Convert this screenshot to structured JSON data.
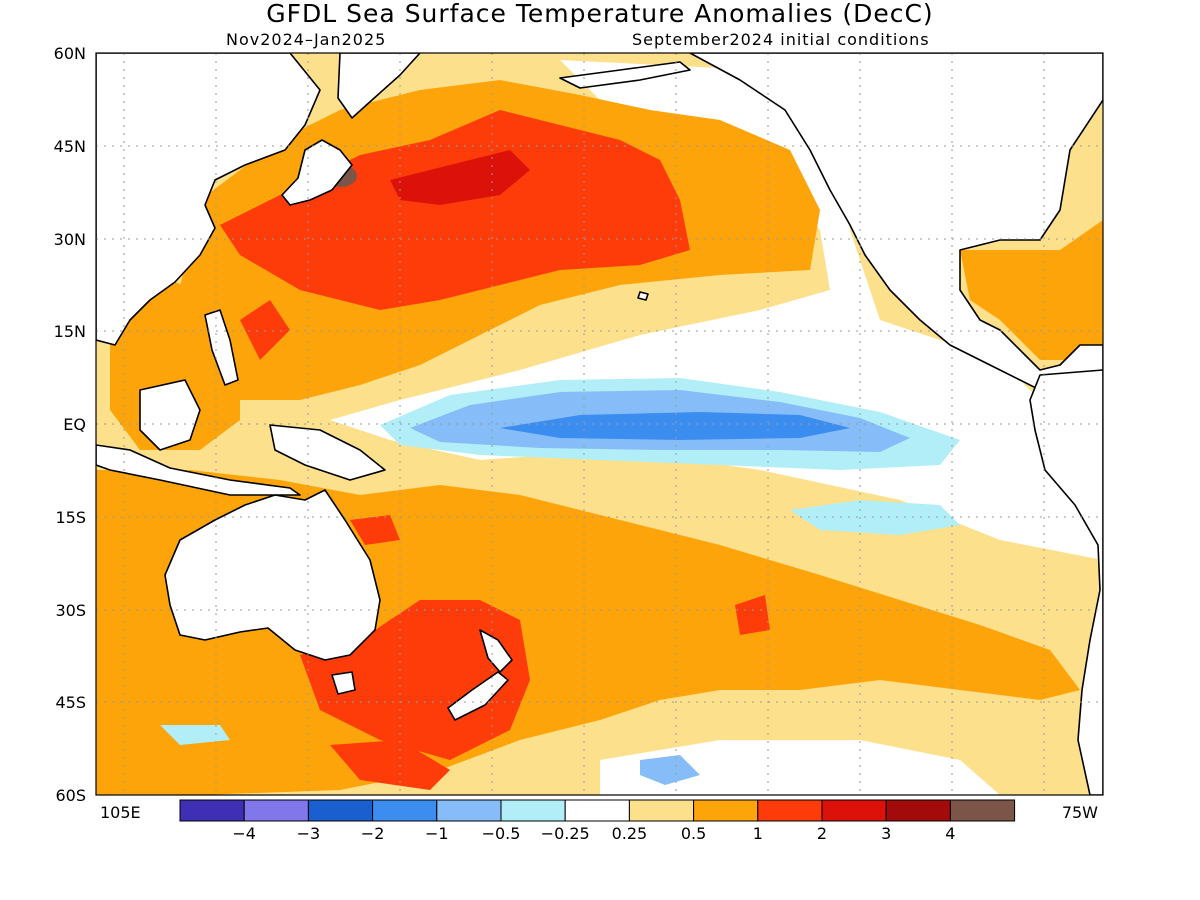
{
  "header": {
    "title": "GFDL Sea Surface Temperature Anomalies (DecC)",
    "period": "Nov2024–Jan2025",
    "init": "September2024 initial conditions"
  },
  "map": {
    "lat_labels": [
      "60N",
      "45N",
      "30N",
      "15N",
      "EQ",
      "15S",
      "30S",
      "45S",
      "60S"
    ],
    "lon_left": "105E",
    "lon_right": "75W"
  },
  "colorbar": {
    "colors": [
      "#3f2fb4",
      "#8176ea",
      "#1a5fd0",
      "#3b8ef0",
      "#86bdf8",
      "#b1eef7",
      "#ffffff",
      "#fde08b",
      "#fda40a",
      "#fd3c0a",
      "#dc120a",
      "#a30a0a",
      "#7a5548"
    ],
    "labels": [
      "−4",
      "−3",
      "−2",
      "−1",
      "−0.5",
      "−0.25",
      "0.25",
      "0.5",
      "1",
      "2",
      "3",
      "4"
    ]
  },
  "palette": {
    "pos_025": "#fde08b",
    "pos_05": "#fda40a",
    "pos_1": "#fd3c0a",
    "pos_2": "#dc120a",
    "pos_4": "#7a5548",
    "neg_025": "#b1eef7",
    "neg_05": "#86bdf8",
    "neg_1": "#3b8ef0"
  }
}
